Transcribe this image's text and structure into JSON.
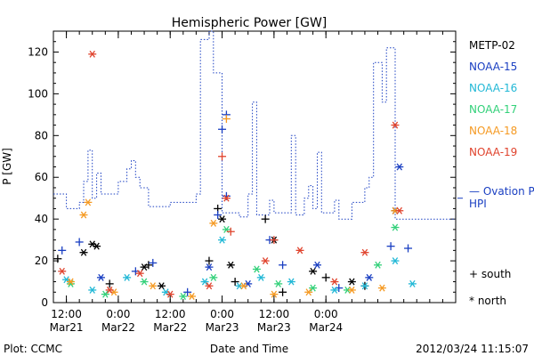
{
  "chart_data": {
    "type": "scatter",
    "title": "Hemispheric Power [GW]",
    "xlabel": "Date and Time",
    "ylabel": "P [GW]",
    "xlim": [
      "2012-03-21 09:00",
      "2012-03-25 06:00"
    ],
    "ylim": [
      0,
      130
    ],
    "grid": false,
    "legend_position": "right",
    "x_ticks": [
      {
        "time": "2012-03-21 12:00",
        "label1": "12:00",
        "label2": "Mar21"
      },
      {
        "time": "2012-03-22 00:00",
        "label1": "0:00",
        "label2": "Mar22"
      },
      {
        "time": "2012-03-22 12:00",
        "label1": "12:00",
        "label2": "Mar22"
      },
      {
        "time": "2012-03-23 00:00",
        "label1": "0:00",
        "label2": "Mar23"
      },
      {
        "time": "2012-03-23 12:00",
        "label1": "12:00",
        "label2": "Mar23"
      },
      {
        "time": "2012-03-24 00:00",
        "label1": "0:00",
        "label2": "Mar24"
      }
    ],
    "y_ticks": [
      0,
      20,
      40,
      60,
      80,
      100,
      120
    ],
    "ovation": {
      "name": "— Ovation Prime HPI",
      "color": "#1a3fc2",
      "points": [
        [
          "2012-03-21 09:00",
          52
        ],
        [
          "2012-03-21 12:00",
          52
        ],
        [
          "2012-03-21 12:00",
          45
        ],
        [
          "2012-03-21 15:00",
          45
        ],
        [
          "2012-03-21 15:00",
          48
        ],
        [
          "2012-03-21 16:00",
          48
        ],
        [
          "2012-03-21 16:00",
          58
        ],
        [
          "2012-03-21 17:00",
          58
        ],
        [
          "2012-03-21 17:00",
          73
        ],
        [
          "2012-03-21 18:00",
          73
        ],
        [
          "2012-03-21 18:00",
          50
        ],
        [
          "2012-03-21 19:00",
          50
        ],
        [
          "2012-03-21 19:00",
          62
        ],
        [
          "2012-03-21 20:00",
          62
        ],
        [
          "2012-03-21 20:00",
          52
        ],
        [
          "2012-03-22 00:00",
          52
        ],
        [
          "2012-03-22 00:00",
          58
        ],
        [
          "2012-03-22 02:00",
          58
        ],
        [
          "2012-03-22 02:00",
          64
        ],
        [
          "2012-03-22 03:00",
          64
        ],
        [
          "2012-03-22 03:00",
          68
        ],
        [
          "2012-03-22 04:00",
          68
        ],
        [
          "2012-03-22 04:00",
          60
        ],
        [
          "2012-03-22 05:00",
          60
        ],
        [
          "2012-03-22 05:00",
          55
        ],
        [
          "2012-03-22 07:00",
          55
        ],
        [
          "2012-03-22 07:00",
          46
        ],
        [
          "2012-03-22 12:00",
          46
        ],
        [
          "2012-03-22 12:00",
          48
        ],
        [
          "2012-03-22 18:00",
          48
        ],
        [
          "2012-03-22 18:00",
          52
        ],
        [
          "2012-03-22 19:00",
          52
        ],
        [
          "2012-03-22 19:00",
          126
        ],
        [
          "2012-03-22 21:00",
          126
        ],
        [
          "2012-03-22 21:00",
          130
        ],
        [
          "2012-03-22 22:00",
          130
        ],
        [
          "2012-03-22 22:00",
          110
        ],
        [
          "2012-03-23 00:00",
          110
        ],
        [
          "2012-03-23 00:00",
          43
        ],
        [
          "2012-03-23 04:00",
          43
        ],
        [
          "2012-03-23 04:00",
          41
        ],
        [
          "2012-03-23 06:00",
          41
        ],
        [
          "2012-03-23 06:00",
          52
        ],
        [
          "2012-03-23 07:00",
          52
        ],
        [
          "2012-03-23 07:00",
          96
        ],
        [
          "2012-03-23 08:00",
          96
        ],
        [
          "2012-03-23 08:00",
          42
        ],
        [
          "2012-03-23 11:00",
          42
        ],
        [
          "2012-03-23 11:00",
          49
        ],
        [
          "2012-03-23 12:00",
          49
        ],
        [
          "2012-03-23 12:00",
          43
        ],
        [
          "2012-03-23 16:00",
          43
        ],
        [
          "2012-03-23 16:00",
          80
        ],
        [
          "2012-03-23 17:00",
          80
        ],
        [
          "2012-03-23 17:00",
          42
        ],
        [
          "2012-03-23 19:00",
          42
        ],
        [
          "2012-03-23 19:00",
          50
        ],
        [
          "2012-03-23 20:00",
          50
        ],
        [
          "2012-03-23 20:00",
          56
        ],
        [
          "2012-03-23 21:00",
          56
        ],
        [
          "2012-03-23 21:00",
          45
        ],
        [
          "2012-03-23 22:00",
          45
        ],
        [
          "2012-03-23 22:00",
          72
        ],
        [
          "2012-03-23 23:00",
          72
        ],
        [
          "2012-03-23 23:00",
          43
        ],
        [
          "2012-03-24 02:00",
          43
        ],
        [
          "2012-03-24 02:00",
          49
        ],
        [
          "2012-03-24 03:00",
          49
        ],
        [
          "2012-03-24 03:00",
          40
        ],
        [
          "2012-03-24 06:00",
          40
        ],
        [
          "2012-03-24 06:00",
          48
        ],
        [
          "2012-03-24 09:00",
          48
        ],
        [
          "2012-03-24 09:00",
          55
        ],
        [
          "2012-03-24 10:00",
          55
        ],
        [
          "2012-03-24 10:00",
          60
        ],
        [
          "2012-03-24 11:00",
          60
        ],
        [
          "2012-03-24 11:00",
          115
        ],
        [
          "2012-03-24 13:00",
          115
        ],
        [
          "2012-03-24 13:00",
          96
        ],
        [
          "2012-03-24 14:00",
          96
        ],
        [
          "2012-03-24 14:00",
          122
        ],
        [
          "2012-03-24 16:00",
          122
        ],
        [
          "2012-03-24 16:00",
          40
        ],
        [
          "2012-03-25 06:00",
          40
        ]
      ]
    },
    "series": [
      {
        "name": "METP-02",
        "color": "#000000",
        "points": [
          [
            "2012-03-21 10:00",
            21,
            "+"
          ],
          [
            "2012-03-21 16:00",
            24,
            "*"
          ],
          [
            "2012-03-21 18:00",
            28,
            "*"
          ],
          [
            "2012-03-21 19:00",
            27,
            "*"
          ],
          [
            "2012-03-21 22:00",
            9,
            "+"
          ],
          [
            "2012-03-22 06:00",
            17,
            "*"
          ],
          [
            "2012-03-22 07:00",
            18,
            "+"
          ],
          [
            "2012-03-22 10:00",
            8,
            "*"
          ],
          [
            "2012-03-22 21:00",
            20,
            "+"
          ],
          [
            "2012-03-22 23:00",
            45,
            "+"
          ],
          [
            "2012-03-23 00:00",
            40,
            "*"
          ],
          [
            "2012-03-23 02:00",
            18,
            "*"
          ],
          [
            "2012-03-23 03:00",
            10,
            "+"
          ],
          [
            "2012-03-23 10:00",
            40,
            "+"
          ],
          [
            "2012-03-23 12:00",
            30,
            "*"
          ],
          [
            "2012-03-23 14:00",
            5,
            "+"
          ],
          [
            "2012-03-23 21:00",
            15,
            "*"
          ],
          [
            "2012-03-24 00:00",
            12,
            "+"
          ],
          [
            "2012-03-24 06:00",
            10,
            "*"
          ],
          [
            "2012-03-24 09:00",
            8,
            "+"
          ],
          [
            "2012-03-24 16:00",
            44,
            "*"
          ]
        ]
      },
      {
        "name": "NOAA-15",
        "color": "#1a3fc2",
        "points": [
          [
            "2012-03-21 11:00",
            25,
            "+"
          ],
          [
            "2012-03-21 15:00",
            29,
            "+"
          ],
          [
            "2012-03-21 20:00",
            12,
            "*"
          ],
          [
            "2012-03-22 04:00",
            15,
            "+"
          ],
          [
            "2012-03-22 08:00",
            19,
            "+"
          ],
          [
            "2012-03-22 16:00",
            5,
            "+"
          ],
          [
            "2012-03-22 21:00",
            17,
            "*"
          ],
          [
            "2012-03-22 23:00",
            42,
            "+"
          ],
          [
            "2012-03-23 00:00",
            83,
            "+"
          ],
          [
            "2012-03-23 01:00",
            90,
            "+"
          ],
          [
            "2012-03-23 01:00",
            51,
            "+"
          ],
          [
            "2012-03-23 06:00",
            9,
            "*"
          ],
          [
            "2012-03-23 11:00",
            30,
            "+"
          ],
          [
            "2012-03-23 14:00",
            18,
            "+"
          ],
          [
            "2012-03-23 22:00",
            18,
            "*"
          ],
          [
            "2012-03-24 03:00",
            7,
            "+"
          ],
          [
            "2012-03-24 10:00",
            12,
            "*"
          ],
          [
            "2012-03-24 15:00",
            27,
            "+"
          ],
          [
            "2012-03-24 17:00",
            65,
            "*"
          ],
          [
            "2012-03-24 19:00",
            26,
            "+"
          ]
        ]
      },
      {
        "name": "NOAA-16",
        "color": "#22b8d6",
        "points": [
          [
            "2012-03-21 12:00",
            11,
            "*"
          ],
          [
            "2012-03-21 18:00",
            6,
            "*"
          ],
          [
            "2012-03-22 02:00",
            12,
            "*"
          ],
          [
            "2012-03-22 11:00",
            5,
            "*"
          ],
          [
            "2012-03-22 20:00",
            10,
            "*"
          ],
          [
            "2012-03-23 00:00",
            30,
            "*"
          ],
          [
            "2012-03-23 04:00",
            8,
            "*"
          ],
          [
            "2012-03-23 09:00",
            12,
            "*"
          ],
          [
            "2012-03-23 16:00",
            10,
            "*"
          ],
          [
            "2012-03-24 02:00",
            6,
            "*"
          ],
          [
            "2012-03-24 09:00",
            8,
            "*"
          ],
          [
            "2012-03-24 16:00",
            20,
            "*"
          ],
          [
            "2012-03-24 20:00",
            9,
            "*"
          ]
        ]
      },
      {
        "name": "NOAA-17",
        "color": "#33d17a",
        "points": [
          [
            "2012-03-21 13:00",
            9,
            "*"
          ],
          [
            "2012-03-21 21:00",
            4,
            "*"
          ],
          [
            "2012-03-22 06:00",
            10,
            "*"
          ],
          [
            "2012-03-22 15:00",
            3,
            "*"
          ],
          [
            "2012-03-22 22:00",
            12,
            "*"
          ],
          [
            "2012-03-23 01:00",
            35,
            "*"
          ],
          [
            "2012-03-23 08:00",
            16,
            "*"
          ],
          [
            "2012-03-23 13:00",
            9,
            "*"
          ],
          [
            "2012-03-23 21:00",
            7,
            "*"
          ],
          [
            "2012-03-24 05:00",
            6,
            "*"
          ],
          [
            "2012-03-24 12:00",
            18,
            "*"
          ],
          [
            "2012-03-24 16:00",
            36,
            "*"
          ]
        ]
      },
      {
        "name": "NOAA-18",
        "color": "#f59a23",
        "points": [
          [
            "2012-03-21 13:00",
            10,
            "*"
          ],
          [
            "2012-03-21 16:00",
            42,
            "*"
          ],
          [
            "2012-03-21 17:00",
            48,
            "*"
          ],
          [
            "2012-03-21 23:00",
            5,
            "*"
          ],
          [
            "2012-03-22 08:00",
            8,
            "*"
          ],
          [
            "2012-03-22 17:00",
            3,
            "*"
          ],
          [
            "2012-03-22 22:00",
            38,
            "*"
          ],
          [
            "2012-03-23 01:00",
            88,
            "+"
          ],
          [
            "2012-03-23 05:00",
            8,
            "*"
          ],
          [
            "2012-03-23 12:00",
            4,
            "*"
          ],
          [
            "2012-03-23 20:00",
            5,
            "*"
          ],
          [
            "2012-03-24 06:00",
            6,
            "*"
          ],
          [
            "2012-03-24 13:00",
            7,
            "*"
          ],
          [
            "2012-03-24 16:00",
            44,
            "*"
          ]
        ]
      },
      {
        "name": "NOAA-19",
        "color": "#e0432d",
        "points": [
          [
            "2012-03-21 11:00",
            15,
            "*"
          ],
          [
            "2012-03-21 18:00",
            119,
            "*"
          ],
          [
            "2012-03-21 22:00",
            6,
            "*"
          ],
          [
            "2012-03-22 05:00",
            14,
            "*"
          ],
          [
            "2012-03-22 12:00",
            4,
            "*"
          ],
          [
            "2012-03-22 21:00",
            8,
            "*"
          ],
          [
            "2012-03-23 00:00",
            70,
            "+"
          ],
          [
            "2012-03-23 01:00",
            50,
            "*"
          ],
          [
            "2012-03-23 02:00",
            34,
            "+"
          ],
          [
            "2012-03-23 10:00",
            20,
            "*"
          ],
          [
            "2012-03-23 12:00",
            30,
            "+"
          ],
          [
            "2012-03-23 18:00",
            25,
            "*"
          ],
          [
            "2012-03-24 02:00",
            10,
            "*"
          ],
          [
            "2012-03-24 09:00",
            24,
            "*"
          ],
          [
            "2012-03-24 16:00",
            85,
            "*"
          ],
          [
            "2012-03-24 17:00",
            44,
            "*"
          ]
        ]
      }
    ],
    "symbol_legend": [
      {
        "symbol": "+",
        "label": "south"
      },
      {
        "symbol": "*",
        "label": "north"
      }
    ]
  },
  "footer": {
    "left": "Plot: CCMC",
    "timestamp": "2012/03/24 11:15:07"
  }
}
